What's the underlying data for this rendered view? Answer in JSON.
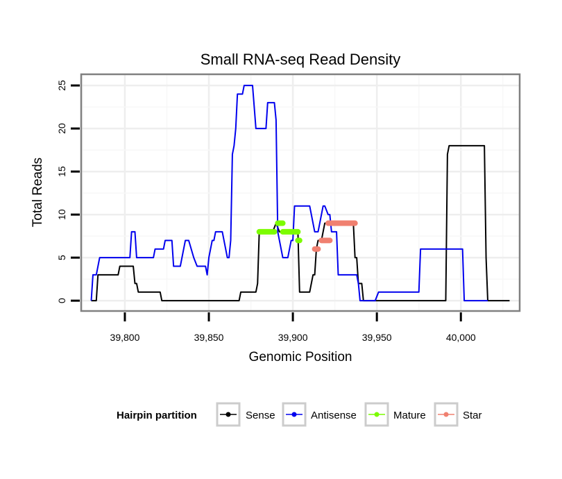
{
  "chart_data": {
    "type": "line",
    "title": "Small RNA-seq Read Density",
    "xlabel": "Genomic Position",
    "ylabel": "Total Reads",
    "xlim": [
      39774,
      40035
    ],
    "ylim": [
      -1.2,
      26.3
    ],
    "xticks": [
      39800,
      39850,
      39900,
      39950,
      40000
    ],
    "xtick_labels": [
      "39,800",
      "39,850",
      "39,900",
      "39,950",
      "40,000"
    ],
    "yticks": [
      0,
      5,
      10,
      15,
      20,
      25
    ],
    "ytick_labels": [
      "0",
      "5",
      "10",
      "15",
      "20",
      "25"
    ],
    "grid": true,
    "legend": {
      "title": "Hairpin partition",
      "position": "bottom",
      "entries": [
        {
          "label": "Sense",
          "color": "#000000"
        },
        {
          "label": "Antisense",
          "color": "#0000ee"
        },
        {
          "label": "Mature",
          "color": "#7cfc00"
        },
        {
          "label": "Star",
          "color": "#f08070"
        }
      ]
    },
    "series": [
      {
        "name": "Sense",
        "color": "#000000",
        "style": "line",
        "points": [
          [
            39780,
            0
          ],
          [
            39783,
            0
          ],
          [
            39784,
            3
          ],
          [
            39796,
            3
          ],
          [
            39797,
            4
          ],
          [
            39805,
            4
          ],
          [
            39806,
            2
          ],
          [
            39807,
            2
          ],
          [
            39808,
            1
          ],
          [
            39821,
            1
          ],
          [
            39822,
            0
          ],
          [
            39868,
            0
          ],
          [
            39869,
            1
          ],
          [
            39878,
            1
          ],
          [
            39879,
            2
          ],
          [
            39880,
            8
          ],
          [
            39888,
            8
          ],
          [
            39890,
            9
          ],
          [
            39892,
            8
          ],
          [
            39903,
            8
          ],
          [
            39904,
            1
          ],
          [
            39910,
            1
          ],
          [
            39912,
            3
          ],
          [
            39913,
            3
          ],
          [
            39914,
            6
          ],
          [
            39915,
            7
          ],
          [
            39917,
            7
          ],
          [
            39919,
            9
          ],
          [
            39936,
            9
          ],
          [
            39937,
            5
          ],
          [
            39938,
            5
          ],
          [
            39939,
            2
          ],
          [
            39941,
            2
          ],
          [
            39942,
            0
          ],
          [
            39991,
            0
          ],
          [
            39992,
            17
          ],
          [
            39993,
            18
          ],
          [
            40014,
            18
          ],
          [
            40015,
            5
          ],
          [
            40016,
            0
          ],
          [
            40029,
            0
          ]
        ]
      },
      {
        "name": "Antisense",
        "color": "#0000ee",
        "style": "line",
        "points": [
          [
            39780,
            0
          ],
          [
            39781,
            3
          ],
          [
            39783,
            3
          ],
          [
            39785,
            5
          ],
          [
            39803,
            5
          ],
          [
            39804,
            8
          ],
          [
            39806,
            8
          ],
          [
            39807,
            5
          ],
          [
            39817,
            5
          ],
          [
            39818,
            6
          ],
          [
            39823,
            6
          ],
          [
            39824,
            7
          ],
          [
            39828,
            7
          ],
          [
            39829,
            4
          ],
          [
            39833,
            4
          ],
          [
            39834,
            5
          ],
          [
            39836,
            7
          ],
          [
            39838,
            7
          ],
          [
            39841,
            5
          ],
          [
            39843,
            4
          ],
          [
            39848,
            4
          ],
          [
            39849,
            3
          ],
          [
            39850,
            5
          ],
          [
            39852,
            7
          ],
          [
            39853,
            7
          ],
          [
            39854,
            8
          ],
          [
            39858,
            8
          ],
          [
            39859,
            7
          ],
          [
            39861,
            5
          ],
          [
            39862,
            5
          ],
          [
            39863,
            7
          ],
          [
            39864,
            17
          ],
          [
            39865,
            18
          ],
          [
            39866,
            20
          ],
          [
            39867,
            24
          ],
          [
            39870,
            24
          ],
          [
            39871,
            25
          ],
          [
            39876,
            25
          ],
          [
            39878,
            20
          ],
          [
            39884,
            20
          ],
          [
            39885,
            23
          ],
          [
            39889,
            23
          ],
          [
            39890,
            21
          ],
          [
            39891,
            8
          ],
          [
            39894,
            5
          ],
          [
            39897,
            5
          ],
          [
            39899,
            7
          ],
          [
            39900,
            7
          ],
          [
            39901,
            11
          ],
          [
            39910,
            11
          ],
          [
            39911,
            10
          ],
          [
            39913,
            8
          ],
          [
            39915,
            8
          ],
          [
            39916,
            9
          ],
          [
            39918,
            11
          ],
          [
            39919,
            11
          ],
          [
            39921,
            10
          ],
          [
            39922,
            10
          ],
          [
            39923,
            8
          ],
          [
            39926,
            8
          ],
          [
            39927,
            3
          ],
          [
            39938,
            3
          ],
          [
            39939,
            2
          ],
          [
            39940,
            0
          ],
          [
            39946,
            0
          ],
          [
            39949,
            0
          ],
          [
            39951,
            1
          ],
          [
            39975,
            1
          ],
          [
            39976,
            6
          ],
          [
            40001,
            6
          ],
          [
            40002,
            0
          ],
          [
            40016,
            0
          ]
        ]
      },
      {
        "name": "Mature",
        "color": "#7cfc00",
        "style": "thick",
        "segments": [
          [
            [
              39880,
              8
            ],
            [
              39889,
              8
            ]
          ],
          [
            [
              39891,
              9
            ],
            [
              39894,
              9
            ]
          ],
          [
            [
              39894,
              8
            ],
            [
              39903,
              8
            ]
          ],
          [
            [
              39903,
              7
            ],
            [
              39904,
              7
            ]
          ]
        ]
      },
      {
        "name": "Star",
        "color": "#f08070",
        "style": "thick",
        "segments": [
          [
            [
              39913,
              6
            ],
            [
              39915,
              6
            ]
          ],
          [
            [
              39917,
              7
            ],
            [
              39922,
              7
            ]
          ],
          [
            [
              39921,
              9
            ],
            [
              39937,
              9
            ]
          ]
        ]
      }
    ]
  }
}
